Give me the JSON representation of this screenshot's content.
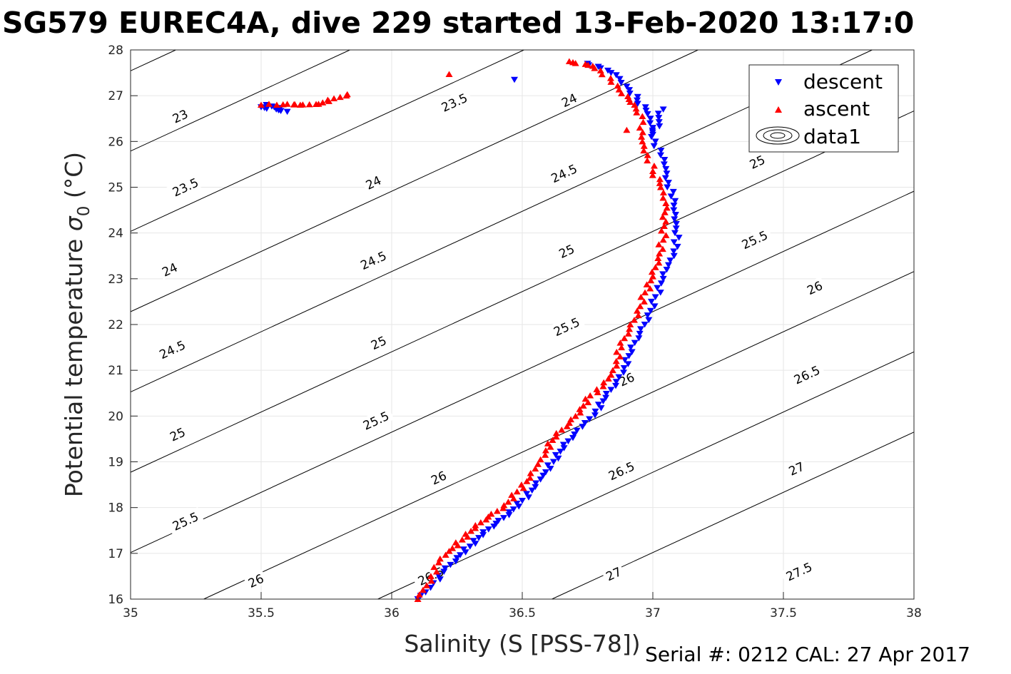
{
  "title": "SG579 EUREC4A, dive 229 started 13-Feb-2020 13:17:0",
  "footer": "Serial #: 0212  CAL: 27 Apr 2017",
  "colors": {
    "descent": "#0000ff",
    "ascent": "#ff0000",
    "contour": "#000000",
    "grid": "#e6e6e6"
  },
  "chart_data": {
    "type": "scatter",
    "xlabel": "Salinity (S [PSS-78])",
    "ylabel_main": "Potential temperature ",
    "ylabel_sigma": "σ",
    "ylabel_sub": "0",
    "ylabel_unit": " (°C)",
    "xlim": [
      35,
      38
    ],
    "ylim": [
      16,
      28
    ],
    "xticks": [
      "35",
      "35.5",
      "36",
      "36.5",
      "37",
      "37.5",
      "38"
    ],
    "yticks": [
      "16",
      "17",
      "18",
      "19",
      "20",
      "21",
      "22",
      "23",
      "24",
      "25",
      "26",
      "27",
      "28"
    ],
    "grid": true,
    "legend_position": "top-right",
    "legend": [
      "descent",
      "ascent",
      "data1"
    ],
    "density_contours": {
      "name": "data1",
      "levels": [
        "23",
        "23.5",
        "24",
        "24.5",
        "25",
        "25.5",
        "26",
        "26.5",
        "27",
        "27.5"
      ],
      "level_values": [
        23,
        23.5,
        24,
        24.5,
        25,
        25.5,
        26,
        26.5,
        27,
        27.5
      ],
      "label_positions": [
        {
          "x": 35.19,
          "y": 26.55,
          "text": "23"
        },
        {
          "x": 36.24,
          "y": 26.85,
          "text": "23.5"
        },
        {
          "x": 35.21,
          "y": 25.0,
          "text": "23.5"
        },
        {
          "x": 35.15,
          "y": 23.2,
          "text": "24"
        },
        {
          "x": 35.93,
          "y": 25.1,
          "text": "24"
        },
        {
          "x": 36.68,
          "y": 26.9,
          "text": "24"
        },
        {
          "x": 35.16,
          "y": 21.45,
          "text": "24.5"
        },
        {
          "x": 35.93,
          "y": 23.4,
          "text": "24.5"
        },
        {
          "x": 36.66,
          "y": 25.3,
          "text": "24.5"
        },
        {
          "x": 35.18,
          "y": 19.6,
          "text": "25"
        },
        {
          "x": 35.95,
          "y": 21.6,
          "text": "25"
        },
        {
          "x": 36.67,
          "y": 23.6,
          "text": "25"
        },
        {
          "x": 37.4,
          "y": 25.55,
          "text": "25"
        },
        {
          "x": 35.21,
          "y": 17.7,
          "text": "25.5"
        },
        {
          "x": 35.94,
          "y": 19.9,
          "text": "25.5"
        },
        {
          "x": 36.67,
          "y": 21.95,
          "text": "25.5"
        },
        {
          "x": 37.39,
          "y": 23.85,
          "text": "25.5"
        },
        {
          "x": 35.48,
          "y": 16.4,
          "text": "26"
        },
        {
          "x": 36.18,
          "y": 18.65,
          "text": "26"
        },
        {
          "x": 36.9,
          "y": 20.8,
          "text": "26"
        },
        {
          "x": 37.62,
          "y": 22.8,
          "text": "26"
        },
        {
          "x": 36.15,
          "y": 16.5,
          "text": "26.5"
        },
        {
          "x": 36.88,
          "y": 18.8,
          "text": "26.5"
        },
        {
          "x": 37.59,
          "y": 20.9,
          "text": "26.5"
        },
        {
          "x": 36.85,
          "y": 16.55,
          "text": "27"
        },
        {
          "x": 37.55,
          "y": 18.85,
          "text": "27"
        },
        {
          "x": 37.56,
          "y": 16.6,
          "text": "27.5"
        }
      ]
    },
    "series": [
      {
        "name": "descent",
        "marker": "triangle-down",
        "points": [
          [
            36.1,
            16.0
          ],
          [
            36.13,
            16.15
          ],
          [
            36.16,
            16.35
          ],
          [
            36.2,
            16.6
          ],
          [
            36.25,
            16.9
          ],
          [
            36.3,
            17.15
          ],
          [
            36.35,
            17.4
          ],
          [
            36.4,
            17.65
          ],
          [
            36.45,
            17.9
          ],
          [
            36.5,
            18.15
          ],
          [
            36.55,
            18.45
          ],
          [
            36.58,
            18.7
          ],
          [
            36.62,
            19.0
          ],
          [
            36.66,
            19.3
          ],
          [
            36.7,
            19.6
          ],
          [
            36.74,
            19.85
          ],
          [
            36.78,
            20.1
          ],
          [
            36.82,
            20.4
          ],
          [
            36.86,
            20.75
          ],
          [
            36.89,
            21.05
          ],
          [
            36.92,
            21.4
          ],
          [
            36.95,
            21.8
          ],
          [
            36.98,
            22.2
          ],
          [
            37.01,
            22.6
          ],
          [
            37.04,
            23.0
          ],
          [
            37.06,
            23.3
          ],
          [
            37.08,
            23.6
          ],
          [
            37.1,
            23.9
          ],
          [
            37.09,
            24.2
          ],
          [
            37.08,
            24.5
          ],
          [
            37.07,
            24.8
          ],
          [
            37.06,
            25.1
          ],
          [
            37.05,
            25.4
          ],
          [
            37.03,
            25.7
          ],
          [
            37.01,
            26.0
          ],
          [
            37.0,
            26.3
          ],
          [
            36.98,
            26.6
          ],
          [
            36.94,
            26.9
          ],
          [
            36.9,
            27.2
          ],
          [
            36.86,
            27.45
          ],
          [
            36.8,
            27.6
          ],
          [
            36.75,
            27.7
          ],
          [
            35.55,
            26.75
          ],
          [
            35.52,
            26.8
          ],
          [
            35.57,
            26.7
          ],
          [
            35.6,
            26.65
          ],
          [
            35.5,
            26.75
          ],
          [
            36.47,
            27.35
          ],
          [
            37.04,
            26.7
          ],
          [
            37.0,
            26.15
          ]
        ]
      },
      {
        "name": "ascent",
        "marker": "triangle-up",
        "points": [
          [
            36.1,
            16.0
          ],
          [
            36.12,
            16.2
          ],
          [
            36.15,
            16.5
          ],
          [
            36.18,
            16.8
          ],
          [
            36.22,
            17.05
          ],
          [
            36.27,
            17.3
          ],
          [
            36.32,
            17.55
          ],
          [
            36.37,
            17.8
          ],
          [
            36.43,
            18.05
          ],
          [
            36.48,
            18.35
          ],
          [
            36.53,
            18.65
          ],
          [
            36.56,
            18.95
          ],
          [
            36.59,
            19.25
          ],
          [
            36.63,
            19.55
          ],
          [
            36.68,
            19.85
          ],
          [
            36.72,
            20.15
          ],
          [
            36.76,
            20.45
          ],
          [
            36.81,
            20.65
          ],
          [
            36.84,
            20.9
          ],
          [
            36.86,
            21.2
          ],
          [
            36.88,
            21.5
          ],
          [
            36.91,
            21.9
          ],
          [
            36.94,
            22.3
          ],
          [
            36.97,
            22.7
          ],
          [
            37.0,
            23.05
          ],
          [
            37.02,
            23.45
          ],
          [
            37.04,
            23.85
          ],
          [
            37.05,
            24.25
          ],
          [
            37.05,
            24.65
          ],
          [
            37.03,
            25.0
          ],
          [
            37.0,
            25.35
          ],
          [
            36.98,
            25.7
          ],
          [
            36.96,
            26.0
          ],
          [
            36.95,
            26.3
          ],
          [
            36.96,
            26.55
          ],
          [
            36.93,
            26.8
          ],
          [
            36.88,
            27.05
          ],
          [
            36.84,
            27.3
          ],
          [
            36.8,
            27.55
          ],
          [
            36.77,
            27.65
          ],
          [
            36.68,
            27.75
          ],
          [
            35.5,
            26.8
          ],
          [
            35.53,
            26.82
          ],
          [
            35.56,
            26.8
          ],
          [
            35.6,
            26.82
          ],
          [
            35.65,
            26.8
          ],
          [
            35.72,
            26.82
          ],
          [
            35.83,
            27.03
          ],
          [
            36.22,
            27.47
          ],
          [
            36.9,
            26.25
          ]
        ]
      }
    ]
  }
}
